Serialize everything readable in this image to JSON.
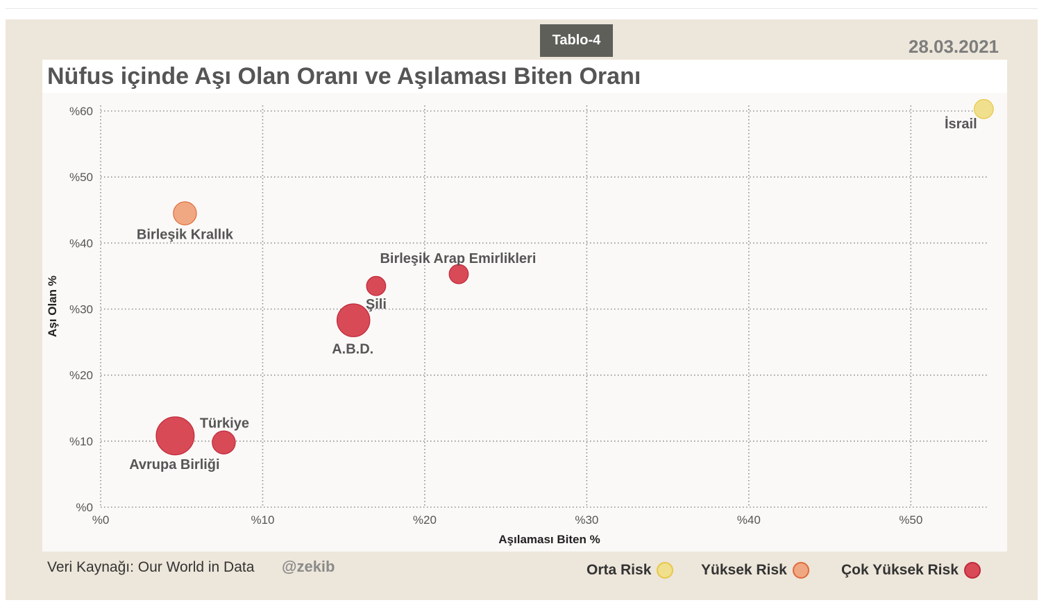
{
  "header": {
    "badge": "Tablo-4",
    "date": "28.03.2021",
    "title": "Nüfus içinde Aşı Olan Oranı ve Aşılaması Biten Oranı"
  },
  "footer": {
    "source": "Veri Kaynağı: Our World in Data",
    "handle": "@zekib"
  },
  "legend": [
    {
      "label": "Orta Risk",
      "fill": "#f0df8c",
      "stroke": "#e6c84a"
    },
    {
      "label": "Yüksek Risk",
      "fill": "#f0a882",
      "stroke": "#e06a3a"
    },
    {
      "label": "Çok Yüksek Risk",
      "fill": "#d94a57",
      "stroke": "#c0283a"
    }
  ],
  "chart_data": {
    "type": "scatter",
    "title": "Nüfus içinde Aşı Olan Oranı ve Aşılaması Biten Oranı",
    "xlabel": "Aşılaması Biten %",
    "ylabel": "Aşı Olan %",
    "xlim": [
      0,
      54.7
    ],
    "ylim": [
      0,
      60
    ],
    "xticks": [
      0,
      10,
      20,
      30,
      40,
      50
    ],
    "yticks": [
      0,
      10,
      20,
      30,
      40,
      50,
      60
    ],
    "xtick_labels": [
      "%0",
      "%10",
      "%20",
      "%30",
      "%40",
      "%50"
    ],
    "ytick_labels": [
      "%0",
      "%10",
      "%20",
      "%30",
      "%40",
      "%50",
      "%60"
    ],
    "grid": true,
    "points": [
      {
        "label": "İsrail",
        "x": 54.5,
        "y": 60.3,
        "size": 1,
        "risk": "Orta Risk"
      },
      {
        "label": "Birleşik Krallık",
        "x": 5.2,
        "y": 44.5,
        "size": 2,
        "risk": "Yüksek Risk"
      },
      {
        "label": "Birleşik Arap Emirlikleri",
        "x": 22.1,
        "y": 35.3,
        "size": 1,
        "risk": "Çok Yüksek Risk"
      },
      {
        "label": "Şili",
        "x": 17.0,
        "y": 33.5,
        "size": 1,
        "risk": "Çok Yüksek Risk"
      },
      {
        "label": "A.B.D.",
        "x": 15.6,
        "y": 28.3,
        "size": 6,
        "risk": "Çok Yüksek Risk"
      },
      {
        "label": "Türkiye",
        "x": 7.6,
        "y": 9.8,
        "size": 2,
        "risk": "Çok Yüksek Risk"
      },
      {
        "label": "Avrupa Birliği",
        "x": 4.6,
        "y": 10.8,
        "size": 9,
        "risk": "Çok Yüksek Risk"
      }
    ]
  }
}
